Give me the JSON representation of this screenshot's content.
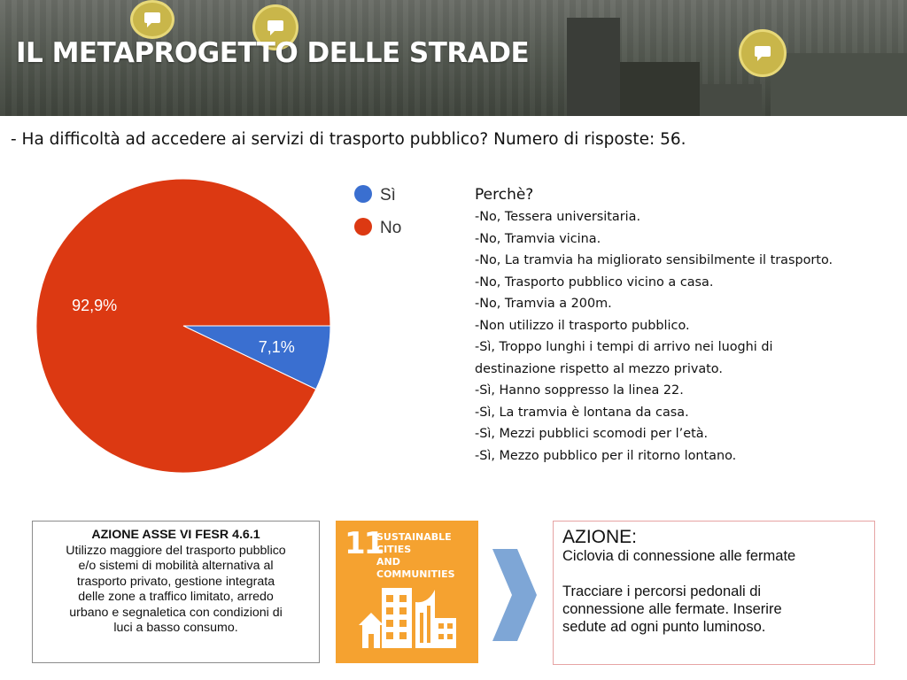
{
  "banner": {
    "title": "IL METAPROGETTO DELLE STRADE"
  },
  "question": "- Ha difficoltà ad accedere ai servizi di trasporto pubblico? Numero di risposte: 56.",
  "chart_data": {
    "type": "pie",
    "categories": [
      "Sì",
      "No"
    ],
    "values": [
      7.1,
      92.9
    ],
    "labels": [
      "7,1%",
      "92,9%"
    ],
    "colors": [
      "#3a6fd0",
      "#dc3912"
    ],
    "legend_labels": [
      "Sì",
      "No"
    ],
    "legend_position": "right"
  },
  "reasons": {
    "title": "Perchè?",
    "lines": [
      "-No, Tessera universitaria.",
      "-No, Tramvia vicina.",
      "-No, La tramvia ha migliorato  sensibilmente il trasporto.",
      "-No, Trasporto pubblico vicino a casa.",
      "-No, Tramvia a 200m.",
      "-Non utilizzo il trasporto pubblico.",
      "-Sì, Troppo lunghi i tempi di arrivo nei luoghi di",
      "destinazione rispetto al mezzo privato.",
      "-Sì, Hanno soppresso la linea 22.",
      "-Sì, La tramvia è lontana da casa.",
      "-Sì, Mezzi pubblici scomodi per l’età.",
      "-Sì, Mezzo pubblico per il ritorno lontano."
    ]
  },
  "fesr": {
    "title": "AZIONE ASSE VI FESR 4.6.1",
    "lines": [
      "Utilizzo maggiore del trasporto pubblico",
      "e/o sistemi di mobilità alternativa al",
      "trasporto privato, gestione integrata",
      "delle zone a traffico limitato, arredo",
      "urbano e segnaletica con condizioni di",
      "luci a basso consumo."
    ]
  },
  "sdg": {
    "number": "11",
    "line1": "SUSTAINABLE CITIES",
    "line2": "AND COMMUNITIES",
    "icon": "city-buildings-icon"
  },
  "azione": {
    "title": "AZIONE:",
    "line1": "Ciclovia di connessione alle fermate",
    "line2": "Tracciare i percorsi pedonali di",
    "line3": "connessione alle fermate. Inserire",
    "line4": "sedute ad ogni punto luminoso."
  }
}
